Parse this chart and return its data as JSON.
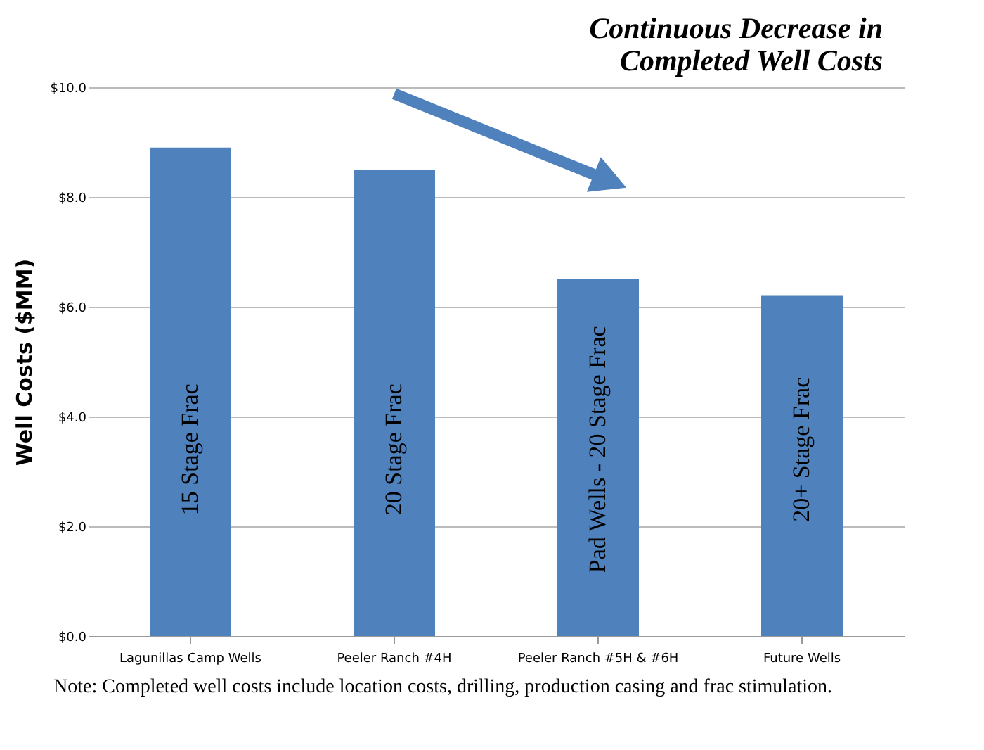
{
  "chart_data": {
    "type": "bar",
    "title": [
      "Continuous Decrease in",
      "Completed Well Costs"
    ],
    "ylabel": "Well Costs ($MM)",
    "categories": [
      "Lagunillas Camp Wells",
      "Peeler Ranch #4H",
      "Peeler Ranch #5H & #6H",
      "Future Wells"
    ],
    "values": [
      8.9,
      8.5,
      6.5,
      6.2
    ],
    "color": "#4f81bd",
    "ylim": [
      0,
      10
    ],
    "yticks": [
      {
        "value": 0,
        "label": "$0.0"
      },
      {
        "value": 2,
        "label": "$2.0"
      },
      {
        "value": 4,
        "label": "$4.0"
      },
      {
        "value": 6,
        "label": "$6.0"
      },
      {
        "value": 8,
        "label": "$8.0"
      },
      {
        "value": 10,
        "label": "$10.0"
      }
    ],
    "grid": "y",
    "legend": false,
    "annotations": [
      "15 Stage Frac",
      "20 Stage Frac",
      "Pad Wells - 20 Stage Frac",
      "20+ Stage Frac",
      "Note: Completed well costs include location costs, drilling, production casing and frac stimulation."
    ]
  }
}
